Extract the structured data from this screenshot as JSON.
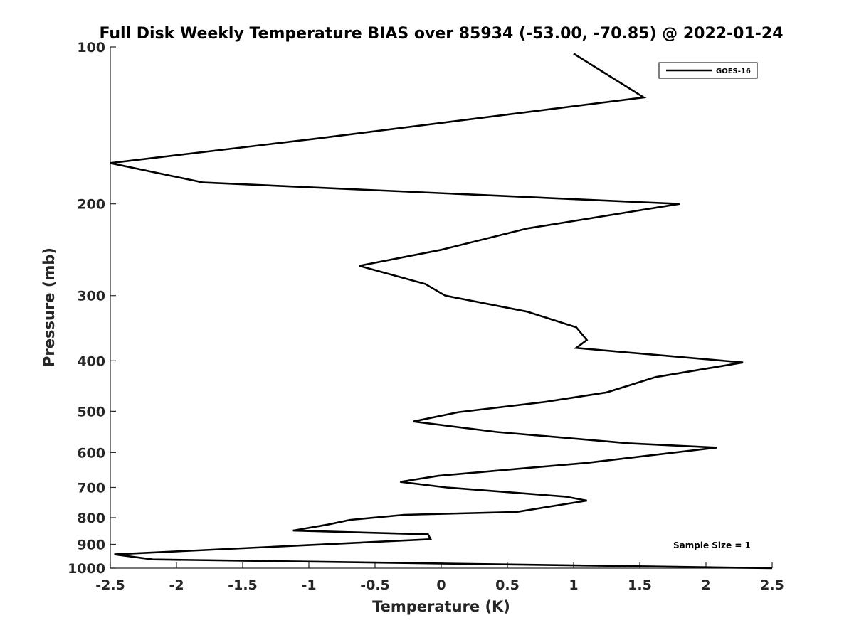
{
  "chart_data": {
    "type": "line",
    "title": "Full Disk Weekly Temperature BIAS over 85934 (-53.00, -70.85) @ 2022-01-24",
    "xlabel": "Temperature (K)",
    "ylabel": "Pressure (mb)",
    "xlim": [
      -2.5,
      2.5
    ],
    "ylim": [
      100,
      1000
    ],
    "y_scale": "log",
    "y_reversed": true,
    "xticks": [
      -2.5,
      -2,
      -1.5,
      -1,
      -0.5,
      0,
      0.5,
      1,
      1.5,
      2,
      2.5
    ],
    "xtick_labels": [
      "-2.5",
      "-2",
      "-1.5",
      "-1",
      "-0.5",
      "0",
      "0.5",
      "1",
      "1.5",
      "2",
      "2.5"
    ],
    "yticks": [
      100,
      200,
      300,
      400,
      500,
      600,
      700,
      800,
      900,
      1000
    ],
    "ytick_labels": [
      "100",
      "200",
      "300",
      "400",
      "500",
      "600",
      "700",
      "800",
      "900",
      "1000"
    ],
    "grid": false,
    "legend_position": "top-right",
    "series": [
      {
        "name": "GOES-16",
        "color": "#000000",
        "x": [
          1.0,
          1.53,
          -0.95,
          -2.5,
          -1.8,
          1.8,
          0.65,
          0.0,
          -0.62,
          -0.12,
          0.03,
          0.65,
          1.02,
          1.1,
          1.02,
          2.28,
          1.62,
          1.25,
          0.78,
          0.13,
          -0.21,
          0.42,
          1.42,
          2.08,
          1.1,
          0.57,
          -0.02,
          -0.31,
          0.04,
          0.94,
          1.1,
          0.57,
          -0.28,
          -0.69,
          -0.86,
          -1.12,
          -0.1,
          -0.08,
          -2.47,
          -2.18,
          2.5
        ],
        "y": [
          103,
          125,
          150,
          167,
          182,
          200,
          223,
          245,
          263,
          285,
          300,
          322,
          345,
          365,
          378,
          403,
          430,
          460,
          480,
          502,
          523,
          548,
          576,
          587,
          628,
          645,
          665,
          683,
          700,
          729,
          742,
          780,
          790,
          808,
          825,
          847,
          861,
          880,
          941,
          962,
          1000
        ]
      }
    ],
    "annotations": [
      "Sample Size = 1"
    ]
  }
}
